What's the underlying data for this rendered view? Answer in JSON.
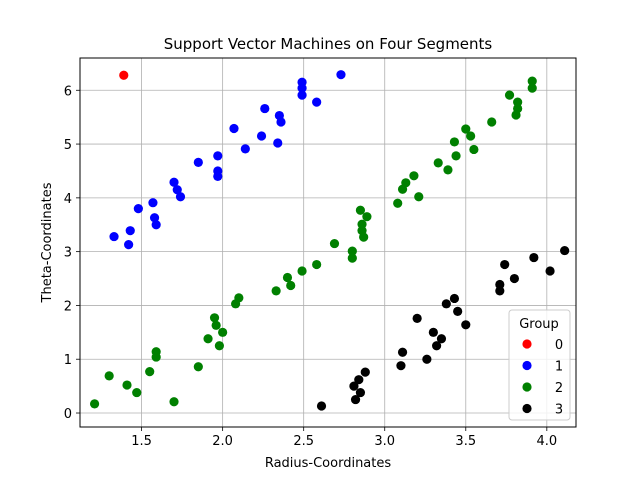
{
  "chart_data": {
    "type": "scatter",
    "title": "Support Vector Machines on Four Segments",
    "xlabel": "Radius-Coordinates",
    "ylabel": "Theta-Coordinates",
    "xlim": [
      1.12,
      4.18
    ],
    "ylim": [
      -0.26,
      6.6
    ],
    "xticks": [
      1.5,
      2.0,
      2.5,
      3.0,
      3.5,
      4.0
    ],
    "yticks": [
      0,
      1,
      2,
      3,
      4,
      5,
      6
    ],
    "xtick_labels": [
      "1.5",
      "2.0",
      "2.5",
      "3.0",
      "3.5",
      "4.0"
    ],
    "ytick_labels": [
      "0",
      "1",
      "2",
      "3",
      "4",
      "5",
      "6"
    ],
    "grid": true,
    "legend": {
      "title": "Group",
      "position": "lower-right"
    },
    "series": [
      {
        "name": "0",
        "color": "#ff0000",
        "points": [
          [
            1.39,
            6.28
          ]
        ]
      },
      {
        "name": "1",
        "color": "#0000ff",
        "points": [
          [
            1.33,
            3.28
          ],
          [
            1.42,
            3.13
          ],
          [
            1.43,
            3.39
          ],
          [
            1.48,
            3.8
          ],
          [
            1.57,
            3.91
          ],
          [
            1.58,
            3.63
          ],
          [
            1.59,
            3.5
          ],
          [
            1.7,
            4.29
          ],
          [
            1.72,
            4.15
          ],
          [
            1.74,
            4.02
          ],
          [
            1.85,
            4.66
          ],
          [
            1.97,
            4.5
          ],
          [
            1.97,
            4.4
          ],
          [
            1.97,
            4.78
          ],
          [
            2.07,
            5.29
          ],
          [
            2.14,
            4.91
          ],
          [
            2.24,
            5.15
          ],
          [
            2.26,
            5.66
          ],
          [
            2.34,
            5.02
          ],
          [
            2.35,
            5.53
          ],
          [
            2.36,
            5.41
          ],
          [
            2.49,
            5.91
          ],
          [
            2.49,
            6.15
          ],
          [
            2.49,
            6.04
          ],
          [
            2.58,
            5.78
          ],
          [
            2.73,
            6.29
          ]
        ]
      },
      {
        "name": "2",
        "color": "#008000",
        "points": [
          [
            1.21,
            0.17
          ],
          [
            1.3,
            0.69
          ],
          [
            1.41,
            0.52
          ],
          [
            1.47,
            0.38
          ],
          [
            1.55,
            0.77
          ],
          [
            1.59,
            1.14
          ],
          [
            1.59,
            1.04
          ],
          [
            1.7,
            0.21
          ],
          [
            1.85,
            0.86
          ],
          [
            1.91,
            1.38
          ],
          [
            1.95,
            1.77
          ],
          [
            1.96,
            1.63
          ],
          [
            1.98,
            1.25
          ],
          [
            2.0,
            1.5
          ],
          [
            2.08,
            2.03
          ],
          [
            2.1,
            2.14
          ],
          [
            2.33,
            2.27
          ],
          [
            2.4,
            2.52
          ],
          [
            2.42,
            2.37
          ],
          [
            2.49,
            2.64
          ],
          [
            2.58,
            2.76
          ],
          [
            2.69,
            3.15
          ],
          [
            2.8,
            3.01
          ],
          [
            2.8,
            2.88
          ],
          [
            2.85,
            3.77
          ],
          [
            2.86,
            3.51
          ],
          [
            2.86,
            3.39
          ],
          [
            2.87,
            3.27
          ],
          [
            2.89,
            3.65
          ],
          [
            3.08,
            3.9
          ],
          [
            3.11,
            4.16
          ],
          [
            3.13,
            4.28
          ],
          [
            3.18,
            4.41
          ],
          [
            3.21,
            4.02
          ],
          [
            3.33,
            4.65
          ],
          [
            3.39,
            4.52
          ],
          [
            3.43,
            5.04
          ],
          [
            3.44,
            4.78
          ],
          [
            3.5,
            5.28
          ],
          [
            3.53,
            5.15
          ],
          [
            3.55,
            4.9
          ],
          [
            3.66,
            5.41
          ],
          [
            3.77,
            5.91
          ],
          [
            3.81,
            5.54
          ],
          [
            3.82,
            5.66
          ],
          [
            3.82,
            5.78
          ],
          [
            3.91,
            6.04
          ],
          [
            3.91,
            6.17
          ]
        ]
      },
      {
        "name": "3",
        "color": "#000000",
        "points": [
          [
            2.61,
            0.13
          ],
          [
            2.81,
            0.5
          ],
          [
            2.82,
            0.25
          ],
          [
            2.84,
            0.62
          ],
          [
            2.85,
            0.38
          ],
          [
            2.88,
            0.76
          ],
          [
            3.1,
            0.88
          ],
          [
            3.11,
            1.13
          ],
          [
            3.2,
            1.76
          ],
          [
            3.26,
            1.0
          ],
          [
            3.3,
            1.5
          ],
          [
            3.32,
            1.25
          ],
          [
            3.35,
            1.38
          ],
          [
            3.38,
            2.03
          ],
          [
            3.43,
            2.13
          ],
          [
            3.45,
            1.89
          ],
          [
            3.5,
            1.64
          ],
          [
            3.71,
            2.27
          ],
          [
            3.71,
            2.39
          ],
          [
            3.74,
            2.76
          ],
          [
            3.8,
            2.5
          ],
          [
            3.92,
            2.89
          ],
          [
            4.02,
            2.64
          ],
          [
            4.11,
            3.02
          ]
        ]
      }
    ]
  }
}
